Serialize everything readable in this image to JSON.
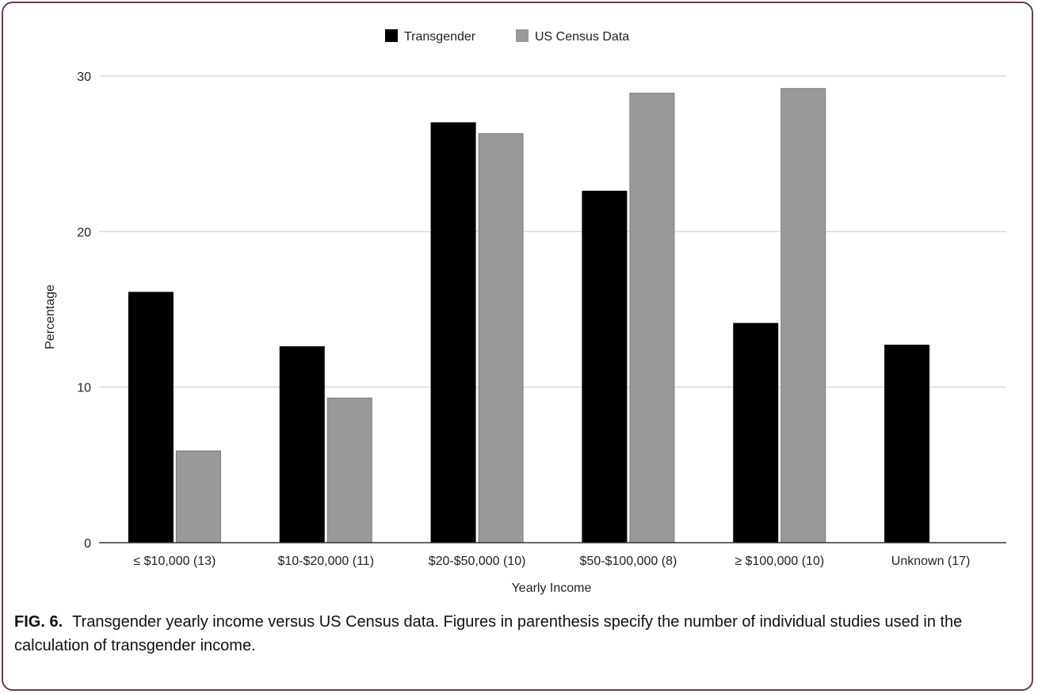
{
  "caption": {
    "label": "FIG. 6.",
    "text": "Transgender yearly income versus US Census data. Figures in parenthesis specify the number of individual studies used in the calculation of transgender income."
  },
  "colors": {
    "transgender": "#000000",
    "census": "#999999",
    "grid": "#d9d9d9",
    "axis": "#333333",
    "frame": "#6a3a5e"
  },
  "chart_data": {
    "type": "bar",
    "title": "",
    "xlabel": "Yearly Income",
    "ylabel": "Percentage",
    "ylim": [
      0,
      30
    ],
    "yticks": [
      0,
      10,
      20,
      30
    ],
    "grid": true,
    "legend_position": "top-center",
    "categories": [
      "≤ $10,000 (13)",
      "$10-$20,000 (11)",
      "$20-$50,000 (10)",
      "$50-$100,000 (8)",
      "≥ $100,000 (10)",
      "Unknown (17)"
    ],
    "series": [
      {
        "name": "Transgender",
        "color": "#000000",
        "values": [
          16.1,
          12.6,
          27.0,
          22.6,
          14.1,
          12.7
        ]
      },
      {
        "name": "US Census Data",
        "color": "#999999",
        "values": [
          5.9,
          9.3,
          26.3,
          28.9,
          29.2,
          null
        ]
      }
    ]
  }
}
